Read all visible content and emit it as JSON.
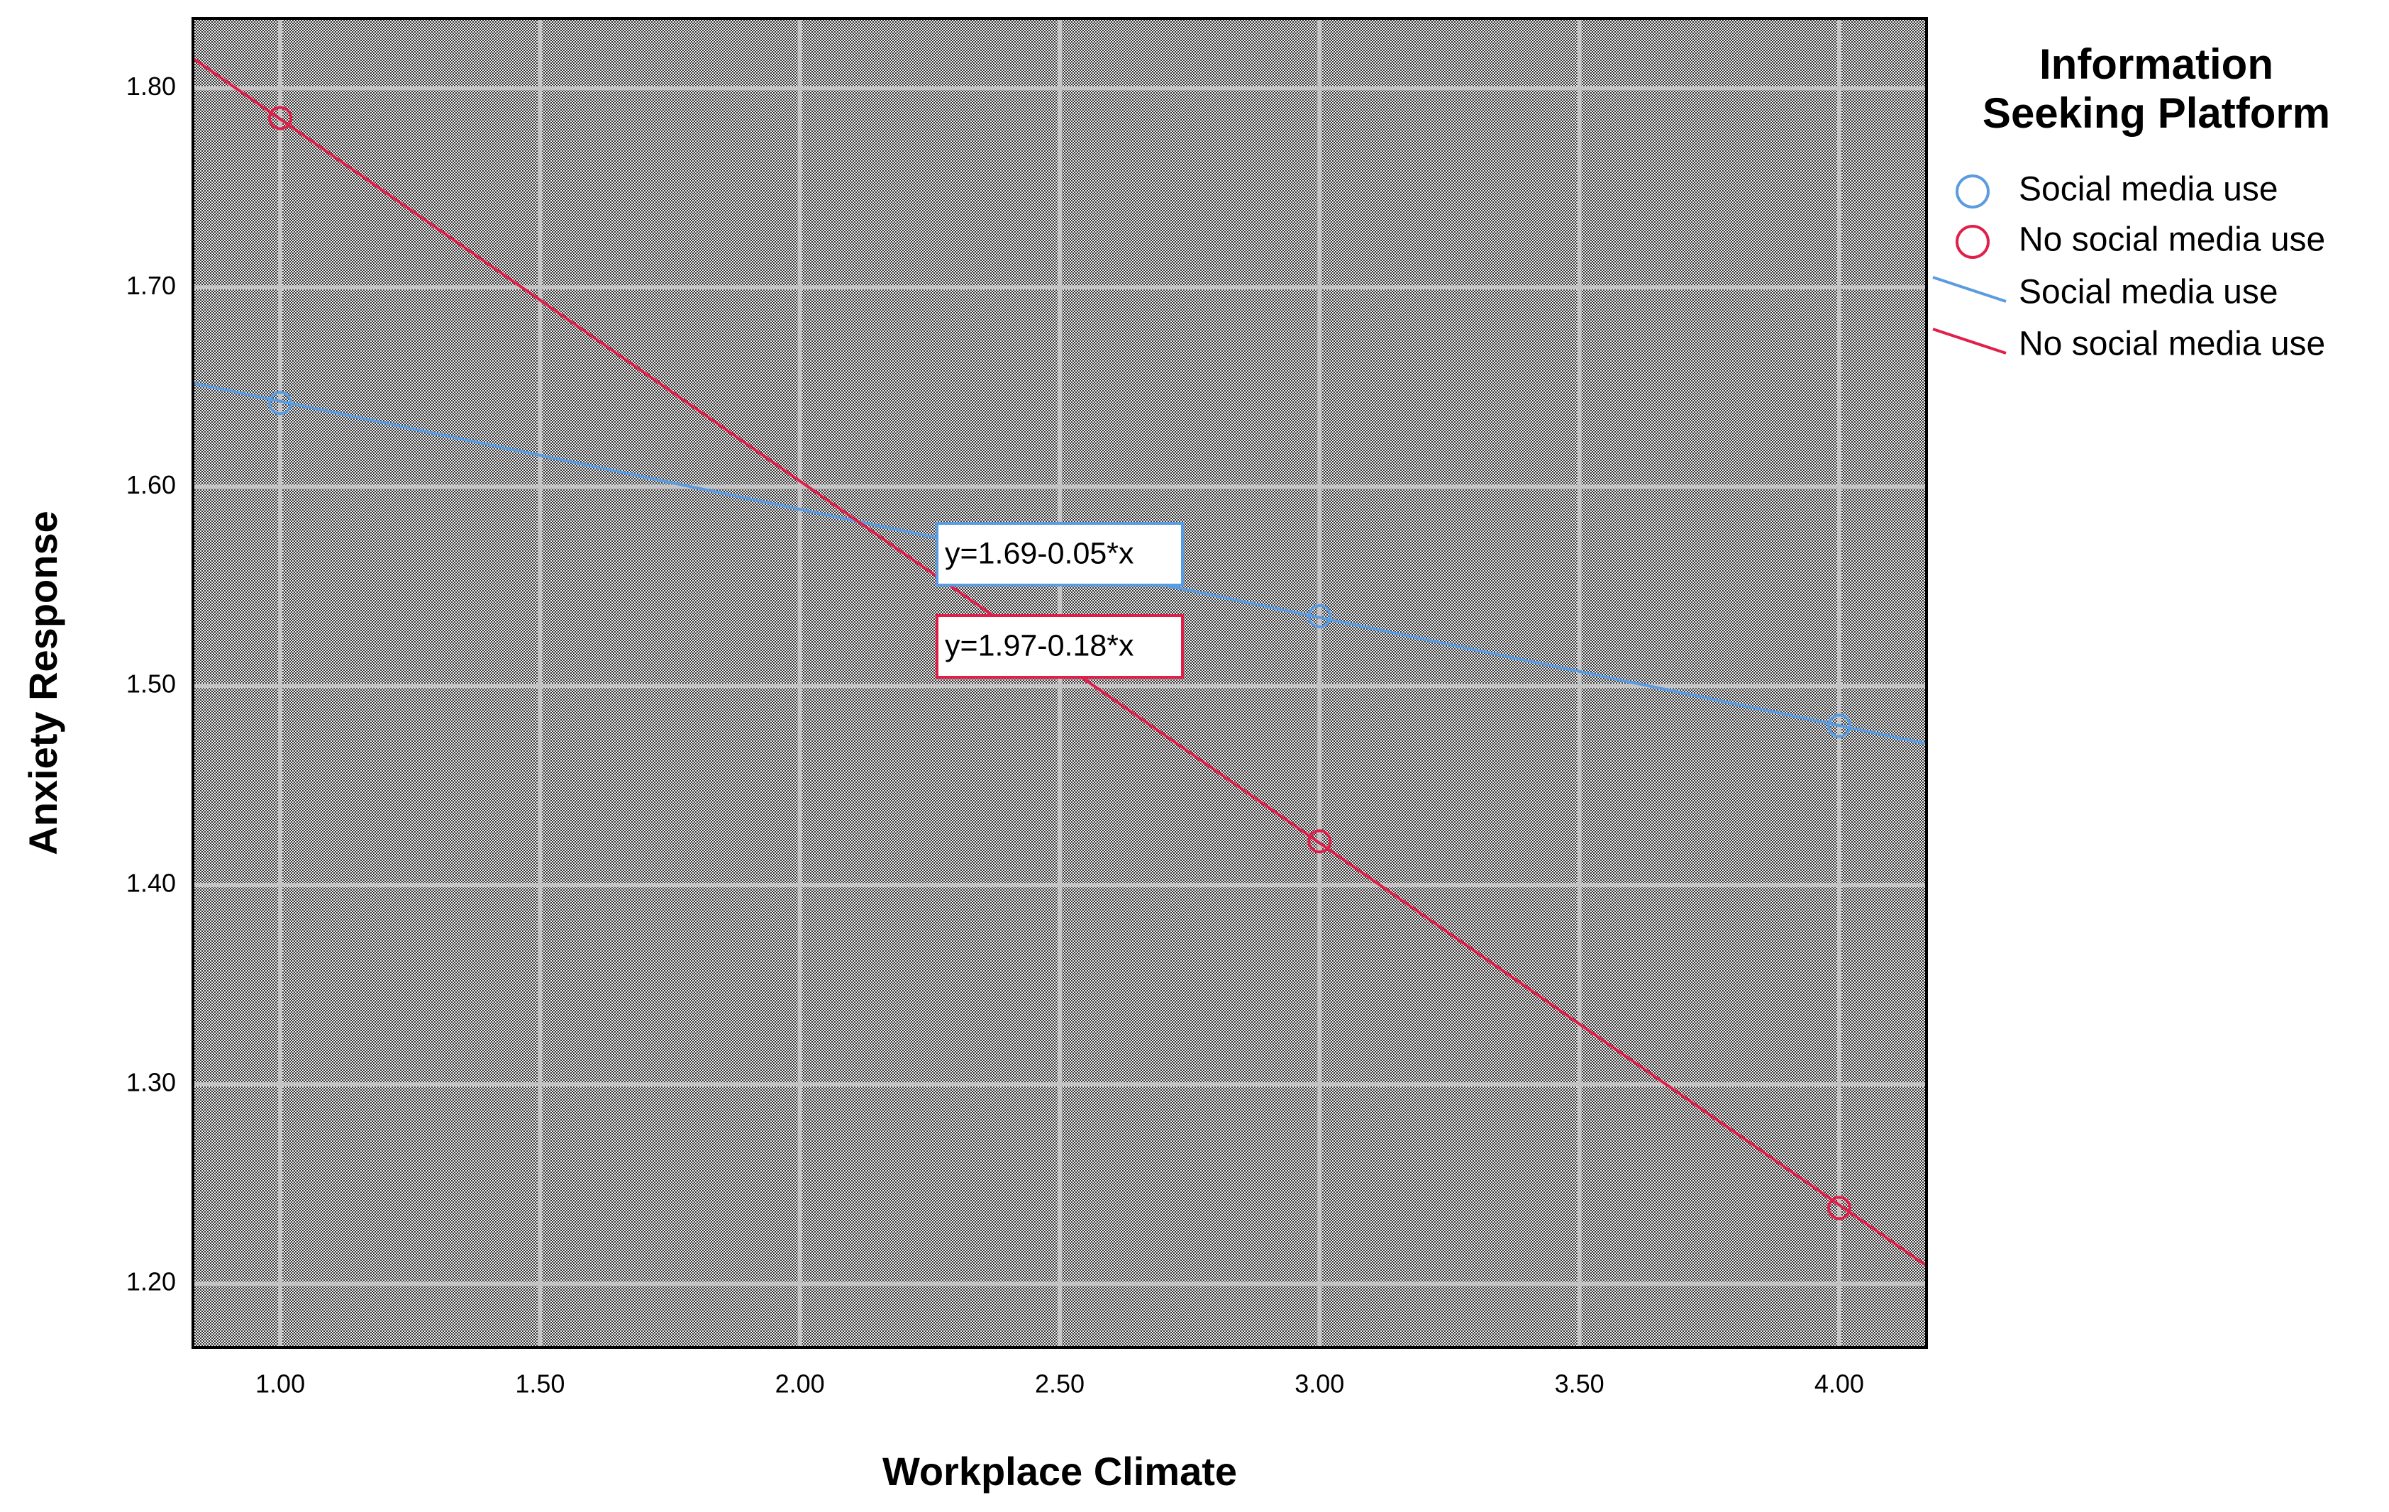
{
  "chart_data": {
    "type": "scatter",
    "x_label": "Workplace Climate",
    "y_label": "Anxiety Response",
    "legend_title": [
      "Information",
      "Seeking Platform"
    ],
    "legend_position": "right",
    "grid": true,
    "xlim": [
      0.832,
      4.168
    ],
    "ylim": [
      1.168,
      1.835
    ],
    "xticks": [
      {
        "value": 1,
        "label": "1.00"
      },
      {
        "value": 1.5,
        "label": "1.50"
      },
      {
        "value": 2,
        "label": "2.00"
      },
      {
        "value": 2.5,
        "label": "2.50"
      },
      {
        "value": 3,
        "label": "3.00"
      },
      {
        "value": 3.5,
        "label": "3.50"
      },
      {
        "value": 4,
        "label": "4.00"
      }
    ],
    "yticks": [
      {
        "value": 1.2,
        "label": "1.20"
      },
      {
        "value": 1.3,
        "label": "1.30"
      },
      {
        "value": 1.4,
        "label": "1.40"
      },
      {
        "value": 1.5,
        "label": "1.50"
      },
      {
        "value": 1.6,
        "label": "1.60"
      },
      {
        "value": 1.7,
        "label": "1.70"
      },
      {
        "value": 1.8,
        "label": "1.80"
      }
    ],
    "series": [
      {
        "name": "Social media use",
        "color": "#5b9be0",
        "mark": "circle",
        "x": [
          1,
          3,
          4
        ],
        "values": [
          1.642,
          1.535,
          1.48
        ]
      },
      {
        "name": "No social media use",
        "color": "#e0204a",
        "mark": "circle",
        "x": [
          1,
          3,
          4
        ],
        "values": [
          1.785,
          1.422,
          1.238
        ]
      },
      {
        "name": "Social media use",
        "color": "#5b9be0",
        "mark": "line",
        "x": [
          0.832,
          4.168
        ],
        "values": [
          1.652,
          1.471
        ]
      },
      {
        "name": "No social media use",
        "color": "#e0204a",
        "mark": "line",
        "x": [
          0.832,
          4.168
        ],
        "values": [
          1.815,
          1.209
        ]
      }
    ],
    "annotations": [
      {
        "text": "y=1.69-0.05*x",
        "color": "#5b9be0"
      },
      {
        "text": "y=1.97-0.18*x",
        "color": "#e0204a"
      }
    ]
  }
}
